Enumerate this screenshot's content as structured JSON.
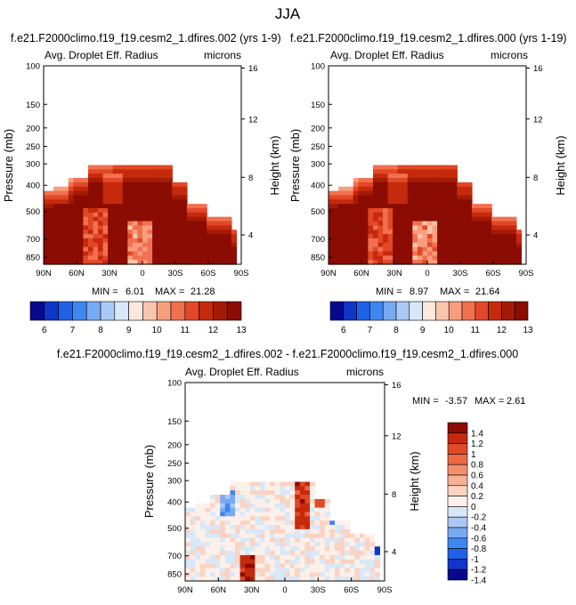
{
  "page_title": "JJA",
  "colors": {
    "abs_levels": [
      "#08088f",
      "#1035c8",
      "#1f62e8",
      "#3f87f0",
      "#78aaf2",
      "#aac9f4",
      "#d8e8f8",
      "#fde8de",
      "#fbc5ad",
      "#f79e7e",
      "#f07050",
      "#e24827",
      "#c52a0d",
      "#a31b06",
      "#8b0c02"
    ],
    "diff_levels": [
      "#08088f",
      "#1035c8",
      "#1f62e8",
      "#3f87f0",
      "#78aaf2",
      "#aac9f4",
      "#d8e8f8",
      "#fdf0ea",
      "#fbd3c2",
      "#f8b096",
      "#f48f6c",
      "#ec6a44",
      "#e04a26",
      "#c52a0d",
      "#8b0c02"
    ]
  },
  "chart_data": [
    {
      "id": "left",
      "type": "heatmap",
      "title": "f.e21.F2000climo.f19_f19.cesm2_1.dfires.002 (yrs 1-9)",
      "variable": "Avg. Droplet Eff. Radius",
      "units": "microns",
      "ylabel": "Pressure (mb)",
      "y2label": "Height (km)",
      "x_ticks": [
        "90N",
        "60N",
        "30N",
        "0",
        "30S",
        "60S",
        "90S"
      ],
      "y_ticks": [
        "100",
        "150",
        "200",
        "250",
        "300",
        "400",
        "500",
        "700",
        "850"
      ],
      "y2_ticks": [
        "16",
        "12",
        "8",
        "4"
      ],
      "stats": {
        "min_label": "MIN =",
        "min": "6.01",
        "max_label": "MAX =",
        "max": "21.28"
      },
      "colorbar_labels": [
        "6",
        "7",
        "8",
        "9",
        "10",
        "11",
        "12",
        "13"
      ],
      "value_range": [
        6.01,
        21.28
      ]
    },
    {
      "id": "right",
      "type": "heatmap",
      "title": "f.e21.F2000climo.f19_f19.cesm2_1.dfires.000 (yrs 1-19)",
      "variable": "Avg. Droplet Eff. Radius",
      "units": "microns",
      "ylabel": "Pressure (mb)",
      "y2label": "Height (km)",
      "x_ticks": [
        "90N",
        "60N",
        "30N",
        "0",
        "30S",
        "60S",
        "90S"
      ],
      "y_ticks": [
        "100",
        "150",
        "200",
        "250",
        "300",
        "400",
        "500",
        "700",
        "850"
      ],
      "y2_ticks": [
        "16",
        "12",
        "8",
        "4"
      ],
      "stats": {
        "min_label": "MIN =",
        "min": "8.97",
        "max_label": "MAX =",
        "max": "21.64"
      },
      "colorbar_labels": [
        "6",
        "7",
        "8",
        "9",
        "10",
        "11",
        "12",
        "13"
      ],
      "value_range": [
        8.97,
        21.64
      ]
    },
    {
      "id": "diff",
      "type": "heatmap",
      "title": "f.e21.F2000climo.f19_f19.cesm2_1.dfires.002 - f.e21.F2000climo.f19_f19.cesm2_1.dfires.000",
      "variable": "Avg. Droplet Eff. Radius",
      "units": "microns",
      "ylabel": "Pressure (mb)",
      "y2label": "Height (km)",
      "x_ticks": [
        "90N",
        "60N",
        "30N",
        "0",
        "30S",
        "60S",
        "90S"
      ],
      "y_ticks": [
        "100",
        "150",
        "200",
        "250",
        "300",
        "400",
        "500",
        "700",
        "850"
      ],
      "y2_ticks": [
        "16",
        "12",
        "8",
        "4"
      ],
      "stats": {
        "min_label": "MIN =",
        "min": "-3.57",
        "max_label": "MAX =",
        "max": "2.61"
      },
      "colorbar_labels": [
        "1.4",
        "1.2",
        "1",
        "0.8",
        "0.6",
        "0.4",
        "0.2",
        "0",
        "-0.2",
        "-0.4",
        "-0.6",
        "-0.8",
        "-1",
        "-1.2",
        "-1.4"
      ],
      "value_range": [
        -3.57,
        2.61
      ]
    }
  ]
}
